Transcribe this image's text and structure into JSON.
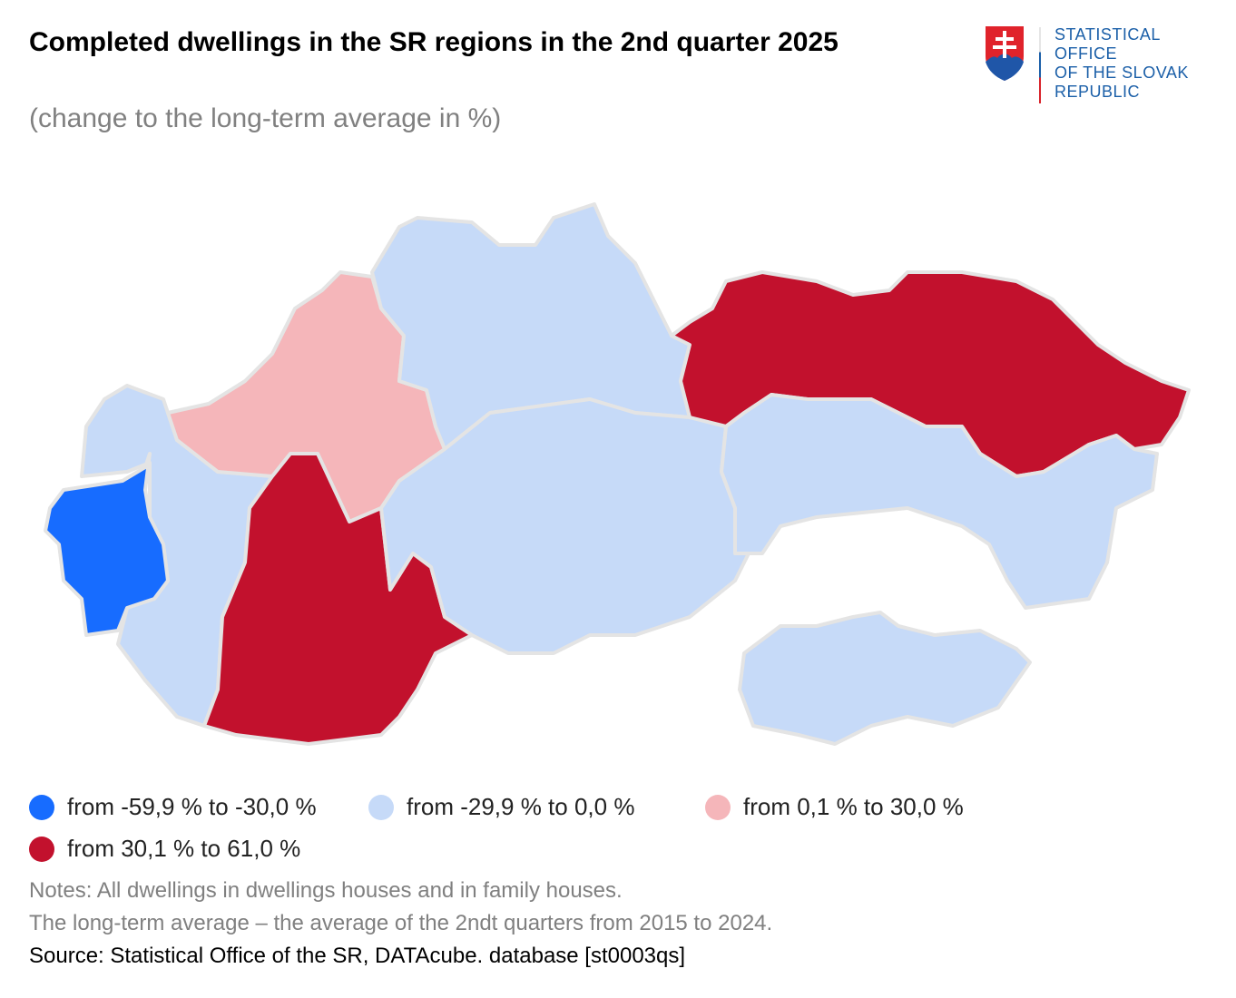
{
  "header": {
    "title": "Completed dwellings in the SR regions in the 2nd quarter 2025",
    "subtitle": "(change to the long-term average in %)"
  },
  "logo": {
    "lines": [
      "STATISTICAL",
      "OFFICE",
      "OF THE SLOVAK",
      "REPUBLIC"
    ]
  },
  "colors": {
    "c1": "#176cff",
    "c2": "#c6daf8",
    "c3": "#f5b6ba",
    "c4": "#c2112d"
  },
  "legend": [
    {
      "label": "from -59,9 % to -30,0 %",
      "color": "#176cff"
    },
    {
      "label": "from -29,9 % to 0,0 %",
      "color": "#c6daf8"
    },
    {
      "label": "from 0,1 % to 30,0 %",
      "color": "#f5b6ba"
    },
    {
      "label": "from 30,1 % to 61,0 %",
      "color": "#c2112d"
    }
  ],
  "regions": [
    {
      "id": "bratislava",
      "class": 0
    },
    {
      "id": "trnava",
      "class": 1
    },
    {
      "id": "trencin",
      "class": 2
    },
    {
      "id": "nitra",
      "class": 3
    },
    {
      "id": "zilina",
      "class": 1
    },
    {
      "id": "banska-bystrica",
      "class": 1
    },
    {
      "id": "presov",
      "class": 3
    },
    {
      "id": "kosice",
      "class": 1
    },
    {
      "id": "southern-area",
      "class": 1
    }
  ],
  "notes": [
    "Notes: All dwellings in dwellings houses and in family houses.",
    "The long-term average – the average of the 2ndt quarters from 2015 to 2024."
  ],
  "source": "Source: Statistical Office of the SR, DATAcube. database [st0003qs]"
}
